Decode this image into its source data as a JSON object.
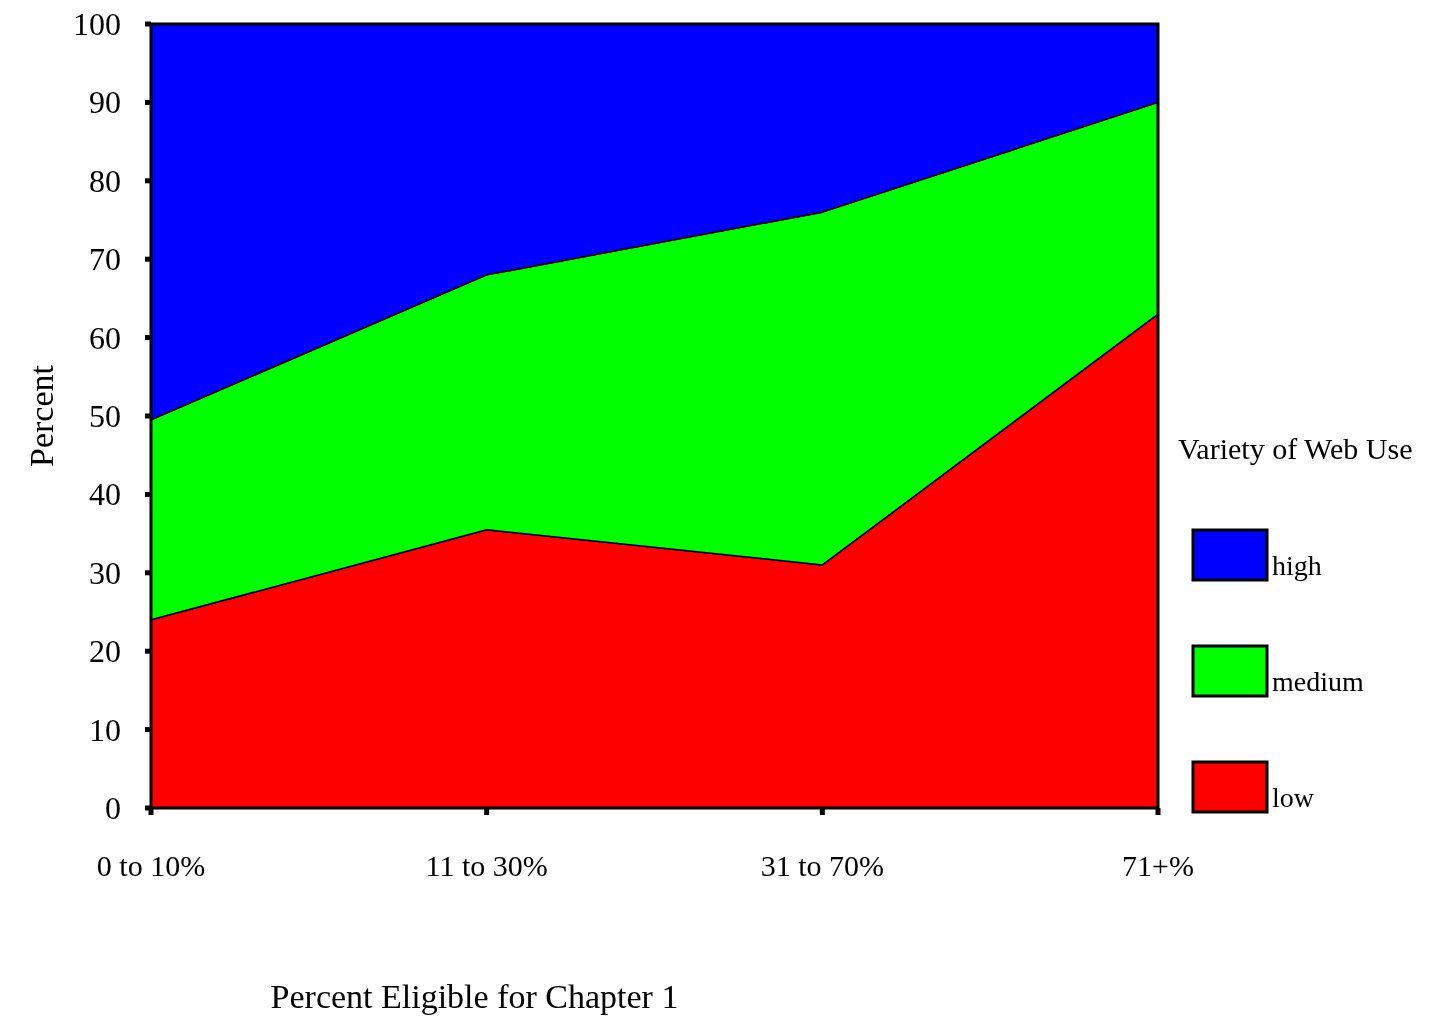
{
  "chart_data": {
    "type": "area",
    "stacked": true,
    "xlabel": "Percent Eligible for Chapter 1",
    "ylabel": "Percent",
    "legend_title": "Variety of Web Use",
    "categories": [
      "0 to 10%",
      "11 to 30%",
      "31 to 70%",
      "71+%"
    ],
    "series": [
      {
        "name": "low",
        "color": "#ff0000",
        "values": [
          24,
          35.5,
          31,
          63
        ]
      },
      {
        "name": "medium",
        "color": "#00ff00",
        "values": [
          25.5,
          32.5,
          45,
          27
        ]
      },
      {
        "name": "high",
        "color": "#0000ff",
        "values": [
          50.5,
          32,
          24,
          10
        ]
      }
    ],
    "ylim": [
      0,
      100
    ],
    "yticks": [
      0,
      10,
      20,
      30,
      40,
      50,
      60,
      70,
      80,
      90,
      100
    ],
    "grid": false,
    "legend": "right"
  }
}
